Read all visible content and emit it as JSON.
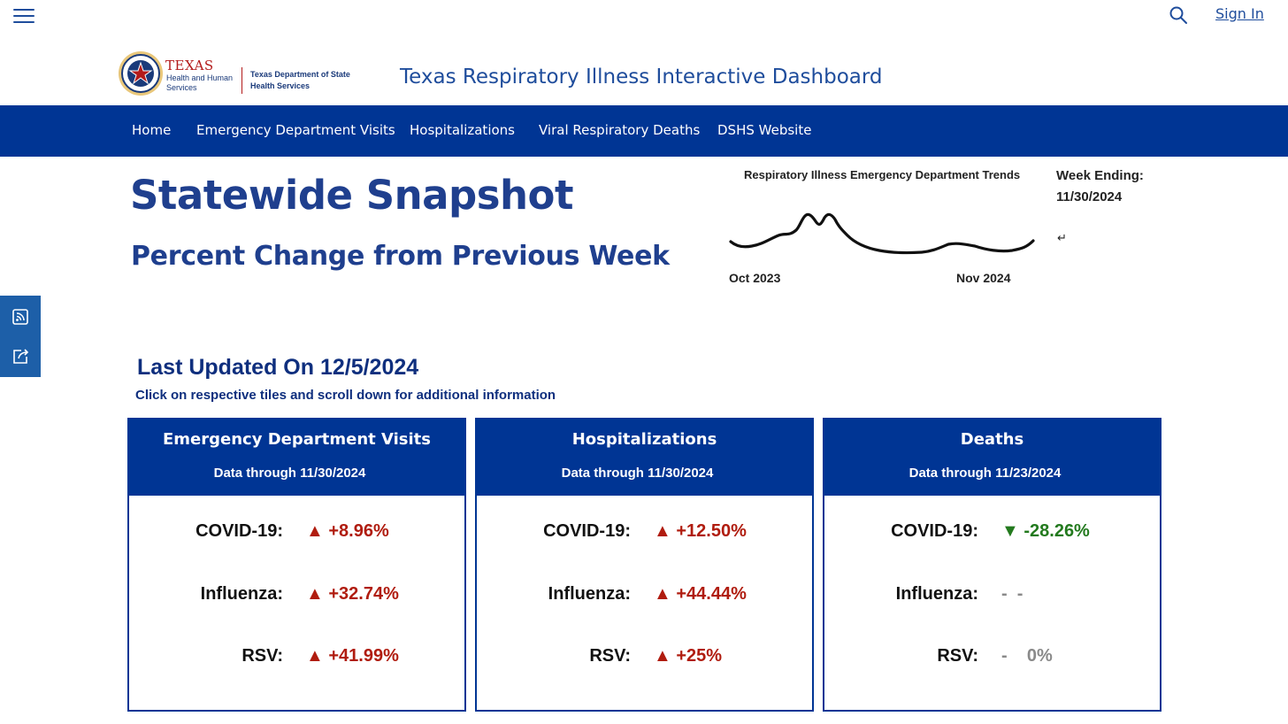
{
  "header": {
    "sign_in_label": "Sign In",
    "menu_icon": "hamburger-menu-icon",
    "search_icon": "search-icon"
  },
  "brand": {
    "texas": "TEXAS",
    "hhs": "Health and Human Services",
    "dshs": "Texas Department of State Health Services",
    "seal_icon": "texas-seal-logo"
  },
  "site_title": "Texas Respiratory Illness Interactive Dashboard",
  "nav": {
    "items": [
      "Home",
      "Emergency Department Visits",
      "Hospitalizations",
      "Viral Respiratory Deaths",
      "DSHS Website"
    ],
    "background": "#003594"
  },
  "snapshot": {
    "title": "Statewide Snapshot",
    "subtitle": "Percent Change from Previous Week"
  },
  "trend": {
    "title": "Respiratory Illness Emergency Department Trends",
    "x_start": "Oct 2023",
    "x_end": "Nov 2024",
    "week_ending": "Week Ending: 11/30/2024",
    "return_glyph": "↵"
  },
  "side_share": {
    "rss_icon": "rss-feed-icon",
    "share_icon": "share-icon"
  },
  "last_updated": "Last Updated On 12/5/2024",
  "click_note": "Click on respective tiles and scroll down for additional information",
  "colors": {
    "increase": "#b01c0f",
    "decrease": "#237a1e",
    "neutral": "#8a8a8a",
    "brand_blue": "#003594"
  },
  "tiles": [
    {
      "title": "Emergency Department Visits",
      "subtitle": "Data through 11/30/2024",
      "rows": [
        {
          "label": "COVID-19:",
          "value": "▲ +8.96%",
          "trend": "up"
        },
        {
          "label": "Influenza:",
          "value": "▲ +32.74%",
          "trend": "up"
        },
        {
          "label": "RSV:",
          "value": "▲ +41.99%",
          "trend": "up"
        }
      ]
    },
    {
      "title": "Hospitalizations",
      "subtitle": "Data through 11/30/2024",
      "rows": [
        {
          "label": "COVID-19:",
          "value": "▲ +12.50%",
          "trend": "up"
        },
        {
          "label": "Influenza:",
          "value": "▲ +44.44%",
          "trend": "up"
        },
        {
          "label": "RSV:",
          "value": "▲ +25%",
          "trend": "up"
        }
      ]
    },
    {
      "title": "Deaths",
      "subtitle": "Data through 11/23/2024",
      "rows": [
        {
          "label": "COVID-19:",
          "value": "▼ -28.26%",
          "trend": "down"
        },
        {
          "label": "Influenza:",
          "value": "-  -",
          "trend": "none"
        },
        {
          "label": "RSV:",
          "value": "-    0%",
          "trend": "none"
        }
      ]
    }
  ]
}
